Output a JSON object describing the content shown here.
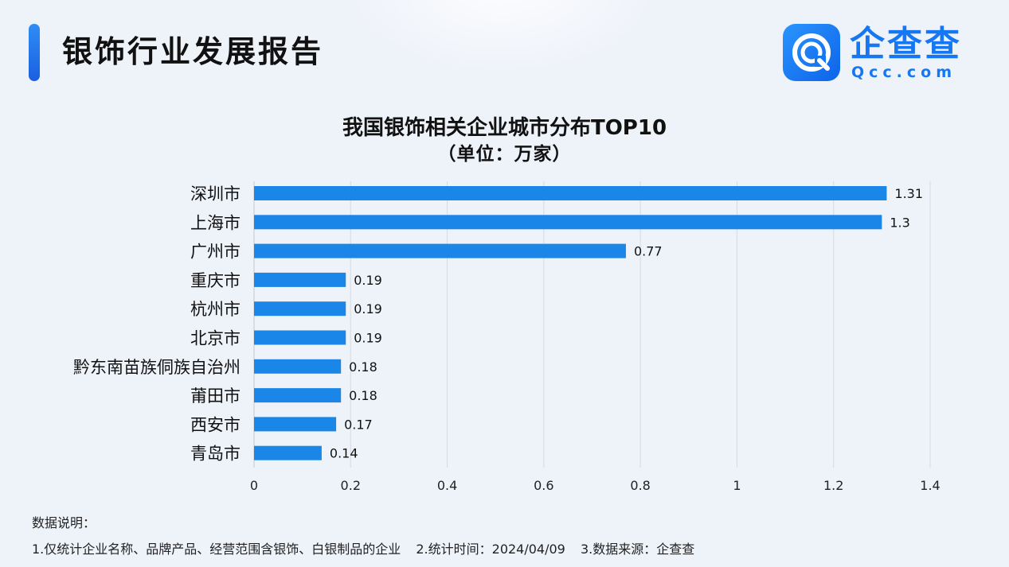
{
  "header": {
    "title": "银饰行业发展报告",
    "logo_name": "企查查",
    "logo_domain": "Qcc.com"
  },
  "colors": {
    "bar": "#1a87e8",
    "accent": "#1a6ae6",
    "brand": "#1677f2",
    "grid": "#d6dae2"
  },
  "chart_data": {
    "type": "bar",
    "orientation": "horizontal",
    "title": "我国银饰相关企业城市分布TOP10",
    "subtitle": "（单位：万家）",
    "categories": [
      "深圳市",
      "上海市",
      "广州市",
      "重庆市",
      "杭州市",
      "北京市",
      "黔东南苗族侗族自治州",
      "莆田市",
      "西安市",
      "青岛市"
    ],
    "values": [
      1.31,
      1.3,
      0.77,
      0.19,
      0.19,
      0.19,
      0.18,
      0.18,
      0.17,
      0.14
    ],
    "data_labels": [
      "1.31",
      "1.3",
      "0.77",
      "0.19",
      "0.19",
      "0.19",
      "0.18",
      "0.18",
      "0.17",
      "0.14"
    ],
    "xlim": [
      0,
      1.4
    ],
    "x_ticks": [
      0,
      0.2,
      0.4,
      0.6,
      0.8,
      1,
      1.2,
      1.4
    ],
    "x_tick_labels": [
      "0",
      "0.2",
      "0.4",
      "0.6",
      "0.8",
      "1",
      "1.2",
      "1.4"
    ],
    "grid": "vertical",
    "legend": "none"
  },
  "notes": {
    "heading": "数据说明：",
    "items": [
      "1.仅统计企业名称、品牌产品、经营范围含银饰、白银制品的企业",
      "2.统计时间：2024/04/09",
      "3.数据来源：企查查"
    ]
  }
}
